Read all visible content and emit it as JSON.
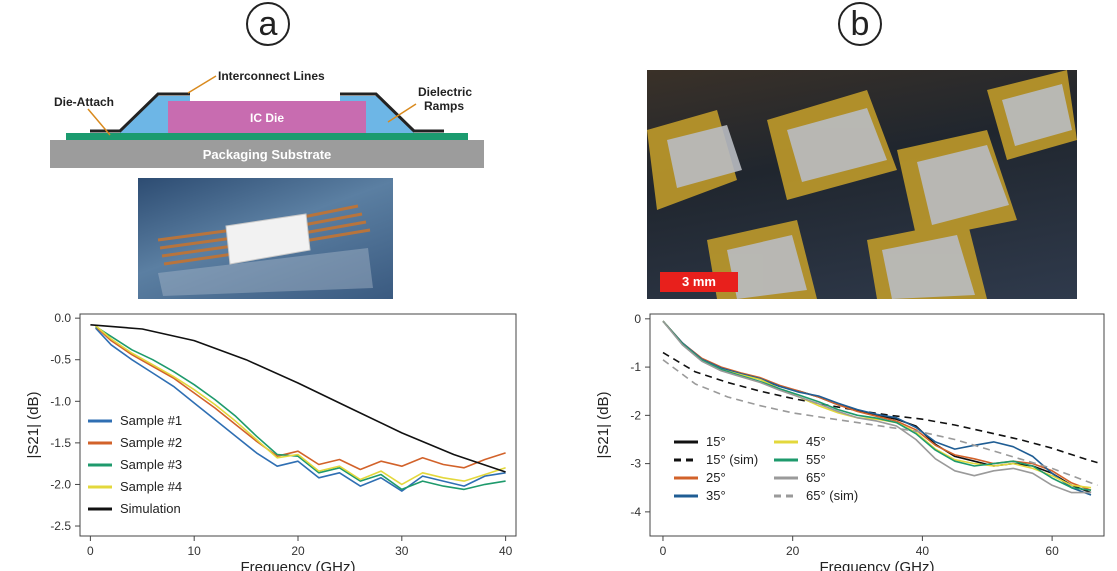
{
  "panels": {
    "a_label": "a",
    "b_label": "b"
  },
  "diagram": {
    "interconnect": "Interconnect Lines",
    "die_attach": "Die-Attach",
    "dielectric_line1": "Dielectric",
    "dielectric_line2": "Ramps",
    "ic_die": "IC Die",
    "substrate": "Packaging Substrate"
  },
  "photo_b": {
    "scalebar": "3 mm"
  },
  "chart_data": [
    {
      "type": "line",
      "xlabel": "Frequency (GHz)",
      "ylabel": "|S21| (dB)",
      "xlim": [
        -1,
        41
      ],
      "ylim": [
        -2.62,
        0.05
      ],
      "xticks": [
        0,
        10,
        20,
        30,
        40
      ],
      "yticks": [
        0.0,
        -0.5,
        -1.0,
        -1.5,
        -2.0,
        -2.5
      ],
      "xtick_labels": [
        "0",
        "10",
        "20",
        "30",
        "40"
      ],
      "ytick_labels": [
        "0.0",
        "-0.5",
        "-1.0",
        "-1.5",
        "-2.0",
        "-2.5"
      ],
      "legend_position": "bottom-left",
      "series": [
        {
          "name": "Sample #1",
          "color": "#2f6fb3",
          "dash": false,
          "x": [
            0.5,
            2,
            4,
            6,
            8,
            10,
            12,
            14,
            16,
            18,
            20,
            22,
            24,
            26,
            28,
            30,
            32,
            34,
            36,
            38,
            40
          ],
          "y": [
            -0.12,
            -0.32,
            -0.5,
            -0.66,
            -0.82,
            -1.02,
            -1.22,
            -1.42,
            -1.62,
            -1.78,
            -1.72,
            -1.92,
            -1.86,
            -2.02,
            -1.92,
            -2.08,
            -1.9,
            -1.96,
            -2.02,
            -1.9,
            -1.86
          ]
        },
        {
          "name": "Sample #2",
          "color": "#d2622a",
          "dash": false,
          "x": [
            0.5,
            2,
            4,
            6,
            8,
            10,
            12,
            14,
            16,
            18,
            20,
            22,
            24,
            26,
            28,
            30,
            32,
            34,
            36,
            38,
            40
          ],
          "y": [
            -0.1,
            -0.27,
            -0.44,
            -0.58,
            -0.72,
            -0.9,
            -1.08,
            -1.28,
            -1.48,
            -1.66,
            -1.6,
            -1.76,
            -1.7,
            -1.82,
            -1.72,
            -1.78,
            -1.68,
            -1.76,
            -1.8,
            -1.7,
            -1.62
          ]
        },
        {
          "name": "Sample #3",
          "color": "#1e9a6c",
          "dash": false,
          "x": [
            0.5,
            2,
            4,
            6,
            8,
            10,
            12,
            14,
            16,
            18,
            20,
            22,
            24,
            26,
            28,
            30,
            32,
            34,
            36,
            38,
            40
          ],
          "y": [
            -0.1,
            -0.22,
            -0.38,
            -0.5,
            -0.64,
            -0.8,
            -0.98,
            -1.18,
            -1.42,
            -1.64,
            -1.66,
            -1.86,
            -1.8,
            -1.96,
            -1.88,
            -2.06,
            -1.96,
            -2.02,
            -2.06,
            -2.0,
            -1.96
          ]
        },
        {
          "name": "Sample #4",
          "color": "#e3d83c",
          "dash": false,
          "x": [
            0.5,
            2,
            4,
            6,
            8,
            10,
            12,
            14,
            16,
            18,
            20,
            22,
            24,
            26,
            28,
            30,
            32,
            34,
            36,
            38,
            40
          ],
          "y": [
            -0.09,
            -0.25,
            -0.42,
            -0.56,
            -0.7,
            -0.86,
            -1.04,
            -1.24,
            -1.46,
            -1.68,
            -1.64,
            -1.84,
            -1.78,
            -1.94,
            -1.84,
            -2.0,
            -1.86,
            -1.92,
            -1.96,
            -1.88,
            -1.8
          ]
        },
        {
          "name": "Simulation",
          "color": "#111111",
          "dash": false,
          "x": [
            0,
            5,
            10,
            15,
            20,
            25,
            30,
            35,
            40
          ],
          "y": [
            -0.08,
            -0.13,
            -0.27,
            -0.5,
            -0.78,
            -1.08,
            -1.38,
            -1.64,
            -1.85
          ]
        }
      ]
    },
    {
      "type": "line",
      "xlabel": "Frequency (GHz)",
      "ylabel": "|S21| (dB)",
      "xlim": [
        -2,
        68
      ],
      "ylim": [
        -4.5,
        0.1
      ],
      "xticks": [
        0,
        20,
        40,
        60
      ],
      "yticks": [
        0,
        -1,
        -2,
        -3,
        -4
      ],
      "xtick_labels": [
        "0",
        "20",
        "40",
        "60"
      ],
      "ytick_labels": [
        "0",
        "-1",
        "-2",
        "-3",
        "-4"
      ],
      "legend_position": "bottom-left",
      "series": [
        {
          "name": "15°",
          "color": "#111111",
          "dash": false,
          "x": [
            0,
            3,
            6,
            9,
            12,
            15,
            18,
            21,
            24,
            27,
            30,
            33,
            36,
            39,
            42,
            45,
            48,
            51,
            54,
            57,
            60,
            63,
            66
          ],
          "y": [
            -0.05,
            -0.5,
            -0.85,
            -1.05,
            -1.15,
            -1.25,
            -1.4,
            -1.5,
            -1.62,
            -1.78,
            -1.9,
            -2.0,
            -2.08,
            -2.22,
            -2.6,
            -2.85,
            -2.95,
            -3.05,
            -3.0,
            -3.05,
            -3.2,
            -3.45,
            -3.6
          ]
        },
        {
          "name": "15° (sim)",
          "color": "#111111",
          "dash": true,
          "x": [
            0,
            5,
            10,
            15,
            20,
            25,
            30,
            35,
            40,
            45,
            50,
            55,
            60,
            65,
            67
          ],
          "y": [
            -0.7,
            -1.1,
            -1.32,
            -1.5,
            -1.65,
            -1.78,
            -1.9,
            -2.0,
            -2.08,
            -2.2,
            -2.35,
            -2.5,
            -2.68,
            -2.9,
            -2.98
          ]
        },
        {
          "name": "25°",
          "color": "#d2622a",
          "dash": false,
          "x": [
            0,
            3,
            6,
            9,
            12,
            15,
            18,
            21,
            24,
            27,
            30,
            33,
            36,
            39,
            42,
            45,
            48,
            51,
            54,
            57,
            60,
            63,
            66
          ],
          "y": [
            -0.05,
            -0.5,
            -0.82,
            -1.0,
            -1.12,
            -1.22,
            -1.38,
            -1.5,
            -1.62,
            -1.78,
            -1.92,
            -2.02,
            -2.12,
            -2.3,
            -2.62,
            -2.82,
            -2.9,
            -3.0,
            -2.95,
            -3.0,
            -3.15,
            -3.4,
            -3.55
          ]
        },
        {
          "name": "35°",
          "color": "#1f5d94",
          "dash": false,
          "x": [
            0,
            3,
            6,
            9,
            12,
            15,
            18,
            21,
            24,
            27,
            30,
            33,
            36,
            39,
            42,
            45,
            48,
            51,
            54,
            57,
            60,
            63,
            66
          ],
          "y": [
            -0.05,
            -0.5,
            -0.84,
            -1.02,
            -1.14,
            -1.24,
            -1.4,
            -1.52,
            -1.6,
            -1.75,
            -1.88,
            -1.98,
            -2.05,
            -2.25,
            -2.55,
            -2.7,
            -2.62,
            -2.55,
            -2.65,
            -2.85,
            -3.2,
            -3.5,
            -3.65
          ]
        },
        {
          "name": "45°",
          "color": "#e3d83c",
          "dash": false,
          "x": [
            0,
            3,
            6,
            9,
            12,
            15,
            18,
            21,
            24,
            27,
            30,
            33,
            36,
            39,
            42,
            45,
            48,
            51,
            54,
            57,
            60,
            63,
            66
          ],
          "y": [
            -0.05,
            -0.52,
            -0.86,
            -1.05,
            -1.16,
            -1.26,
            -1.45,
            -1.62,
            -1.8,
            -1.95,
            -2.05,
            -2.08,
            -2.15,
            -2.35,
            -2.7,
            -2.92,
            -3.0,
            -3.05,
            -3.0,
            -3.1,
            -3.25,
            -3.45,
            -3.5
          ]
        },
        {
          "name": "55°",
          "color": "#1e9a6c",
          "dash": false,
          "x": [
            0,
            3,
            6,
            9,
            12,
            15,
            18,
            21,
            24,
            27,
            30,
            33,
            36,
            39,
            42,
            45,
            48,
            51,
            54,
            57,
            60,
            63,
            66
          ],
          "y": [
            -0.05,
            -0.52,
            -0.86,
            -1.05,
            -1.18,
            -1.3,
            -1.45,
            -1.58,
            -1.72,
            -1.88,
            -2.0,
            -2.06,
            -2.15,
            -2.38,
            -2.72,
            -2.95,
            -3.05,
            -3.0,
            -2.95,
            -3.05,
            -3.3,
            -3.5,
            -3.55
          ]
        },
        {
          "name": "65°",
          "color": "#9a9a9a",
          "dash": false,
          "x": [
            0,
            3,
            6,
            9,
            12,
            15,
            18,
            21,
            24,
            27,
            30,
            33,
            36,
            39,
            42,
            45,
            48,
            51,
            54,
            57,
            60,
            63,
            66
          ],
          "y": [
            -0.05,
            -0.54,
            -0.88,
            -1.08,
            -1.2,
            -1.32,
            -1.48,
            -1.62,
            -1.76,
            -1.92,
            -2.05,
            -2.12,
            -2.22,
            -2.5,
            -2.9,
            -3.15,
            -3.25,
            -3.15,
            -3.1,
            -3.2,
            -3.45,
            -3.6,
            -3.6
          ]
        },
        {
          "name": "65° (sim)",
          "color": "#9a9a9a",
          "dash": true,
          "x": [
            0,
            5,
            10,
            15,
            20,
            25,
            30,
            35,
            40,
            45,
            50,
            55,
            60,
            65,
            67
          ],
          "y": [
            -0.85,
            -1.35,
            -1.62,
            -1.8,
            -1.95,
            -2.05,
            -2.15,
            -2.25,
            -2.35,
            -2.5,
            -2.7,
            -2.9,
            -3.1,
            -3.35,
            -3.45
          ]
        }
      ]
    }
  ]
}
